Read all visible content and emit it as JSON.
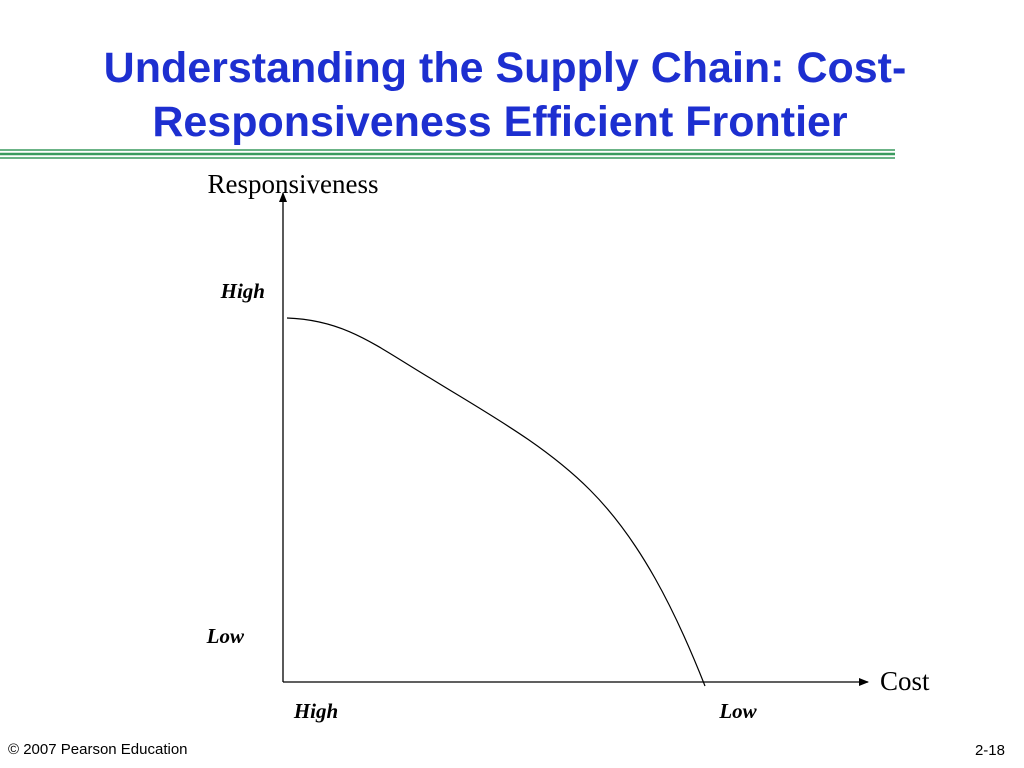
{
  "header": {
    "title_lines": [
      "Understanding the Supply Chain: Cost-",
      "Responsiveness Efficient Frontier"
    ]
  },
  "diagram": {
    "y_axis": {
      "label": "Responsiveness",
      "high": "High",
      "low": "Low"
    },
    "x_axis": {
      "label": "Cost",
      "high": "High",
      "low": "Low"
    }
  },
  "footer": {
    "copyright": "© 2007 Pearson Education",
    "slide_number": "2-18"
  }
}
